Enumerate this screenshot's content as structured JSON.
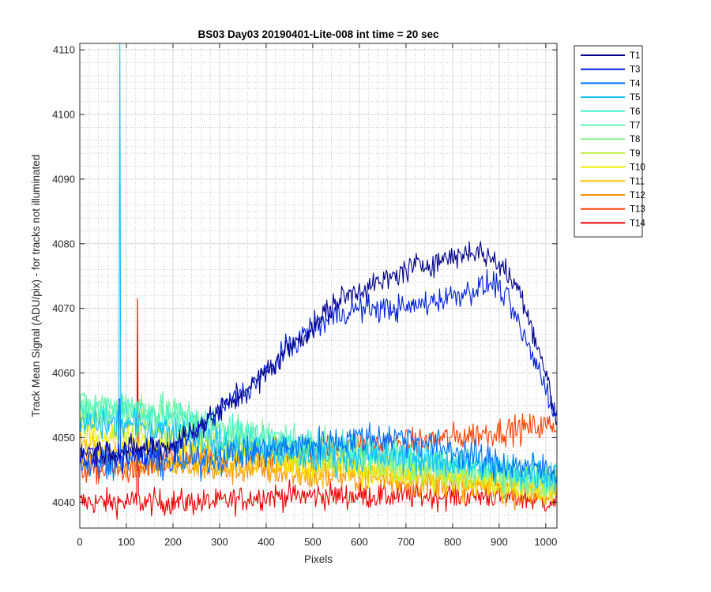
{
  "chart_data": {
    "type": "line",
    "title": "BS03 Day03 20190401-Lite-008 int time = 20 sec",
    "xlabel": "Pixels",
    "ylabel": "Track Mean Signal (ADU/pix) - for tracks not illuminated",
    "xlim": [
      0,
      1024
    ],
    "ylim": [
      4036,
      4111
    ],
    "xticks": [
      0,
      100,
      200,
      300,
      400,
      500,
      600,
      700,
      800,
      900,
      1000
    ],
    "yticks": [
      4040,
      4050,
      4060,
      4070,
      4080,
      4090,
      4100,
      4110
    ],
    "grid": "major and minor (dotted)",
    "legend_position": "outside top-right",
    "series": [
      {
        "name": "T1",
        "color": "#00008f",
        "points": [
          [
            0,
            4048
          ],
          [
            100,
            4048
          ],
          [
            200,
            4049
          ],
          [
            280,
            4053
          ],
          [
            350,
            4057
          ],
          [
            400,
            4060
          ],
          [
            450,
            4064
          ],
          [
            500,
            4067
          ],
          [
            550,
            4071
          ],
          [
            600,
            4073
          ],
          [
            650,
            4074
          ],
          [
            700,
            4076
          ],
          [
            750,
            4077
          ],
          [
            800,
            4078
          ],
          [
            850,
            4079
          ],
          [
            900,
            4077
          ],
          [
            950,
            4072
          ],
          [
            975,
            4066
          ],
          [
            1000,
            4060
          ],
          [
            1024,
            4052
          ]
        ],
        "noise": 1.2
      },
      {
        "name": "T3",
        "color": "#0020df",
        "points": [
          [
            0,
            4047
          ],
          [
            100,
            4047
          ],
          [
            200,
            4048
          ],
          [
            280,
            4053
          ],
          [
            350,
            4057
          ],
          [
            400,
            4060
          ],
          [
            450,
            4064
          ],
          [
            500,
            4067
          ],
          [
            550,
            4069
          ],
          [
            600,
            4070
          ],
          [
            650,
            4070
          ],
          [
            700,
            4070
          ],
          [
            750,
            4071
          ],
          [
            800,
            4072
          ],
          [
            850,
            4073
          ],
          [
            890,
            4074
          ],
          [
            920,
            4071
          ],
          [
            950,
            4066
          ],
          [
            975,
            4062
          ],
          [
            1000,
            4058
          ],
          [
            1024,
            4053
          ]
        ],
        "noise": 1.2
      },
      {
        "name": "T4",
        "color": "#0070ff",
        "points": [
          [
            0,
            4046
          ],
          [
            100,
            4047
          ],
          [
            200,
            4046
          ],
          [
            300,
            4047
          ],
          [
            400,
            4048
          ],
          [
            500,
            4049
          ],
          [
            600,
            4050
          ],
          [
            700,
            4050
          ],
          [
            800,
            4048
          ],
          [
            900,
            4046
          ],
          [
            1024,
            4045
          ]
        ],
        "noise": 1.5,
        "spikes": [
          [
            85,
            4056
          ]
        ]
      },
      {
        "name": "T5",
        "color": "#10c0ff",
        "points": [
          [
            0,
            4052
          ],
          [
            100,
            4052
          ],
          [
            200,
            4051
          ],
          [
            300,
            4049
          ],
          [
            400,
            4048
          ],
          [
            500,
            4047
          ],
          [
            600,
            4047
          ],
          [
            700,
            4047
          ],
          [
            800,
            4046
          ],
          [
            900,
            4045
          ],
          [
            1024,
            4044
          ]
        ],
        "noise": 1.5,
        "spikes": [
          [
            86,
            4111
          ]
        ]
      },
      {
        "name": "T6",
        "color": "#40f0d0",
        "points": [
          [
            0,
            4054
          ],
          [
            100,
            4054
          ],
          [
            200,
            4053
          ],
          [
            300,
            4051
          ],
          [
            400,
            4050
          ],
          [
            500,
            4049
          ],
          [
            600,
            4048
          ],
          [
            700,
            4047
          ],
          [
            800,
            4046
          ],
          [
            900,
            4045
          ],
          [
            1024,
            4044
          ]
        ],
        "noise": 1.5
      },
      {
        "name": "T7",
        "color": "#60f5b0",
        "points": [
          [
            0,
            4055
          ],
          [
            100,
            4055
          ],
          [
            200,
            4054
          ],
          [
            300,
            4052
          ],
          [
            400,
            4050
          ],
          [
            500,
            4049
          ],
          [
            600,
            4048
          ],
          [
            700,
            4047
          ],
          [
            800,
            4046
          ],
          [
            900,
            4045
          ],
          [
            1024,
            4043
          ]
        ],
        "noise": 1.5
      },
      {
        "name": "T8",
        "color": "#90f090",
        "points": [
          [
            0,
            4054
          ],
          [
            100,
            4054
          ],
          [
            200,
            4053
          ],
          [
            300,
            4051
          ],
          [
            400,
            4049
          ],
          [
            500,
            4048
          ],
          [
            600,
            4047
          ],
          [
            700,
            4046
          ],
          [
            800,
            4045
          ],
          [
            900,
            4044
          ],
          [
            1024,
            4043
          ]
        ],
        "noise": 1.5
      },
      {
        "name": "T9",
        "color": "#c0f040",
        "points": [
          [
            0,
            4053
          ],
          [
            100,
            4052
          ],
          [
            200,
            4051
          ],
          [
            300,
            4049
          ],
          [
            400,
            4048
          ],
          [
            500,
            4047
          ],
          [
            600,
            4046
          ],
          [
            700,
            4045
          ],
          [
            800,
            4044
          ],
          [
            900,
            4044
          ],
          [
            1024,
            4043
          ]
        ],
        "noise": 1.5
      },
      {
        "name": "T10",
        "color": "#f0f000",
        "points": [
          [
            0,
            4051
          ],
          [
            100,
            4050
          ],
          [
            200,
            4049
          ],
          [
            300,
            4048
          ],
          [
            400,
            4047
          ],
          [
            500,
            4046
          ],
          [
            600,
            4045
          ],
          [
            700,
            4044
          ],
          [
            800,
            4044
          ],
          [
            900,
            4043
          ],
          [
            1024,
            4042
          ]
        ],
        "noise": 1.5
      },
      {
        "name": "T11",
        "color": "#ffc000",
        "points": [
          [
            0,
            4049
          ],
          [
            100,
            4048
          ],
          [
            200,
            4047
          ],
          [
            300,
            4046
          ],
          [
            400,
            4046
          ],
          [
            500,
            4045
          ],
          [
            600,
            4045
          ],
          [
            700,
            4044
          ],
          [
            800,
            4043
          ],
          [
            900,
            4043
          ],
          [
            1024,
            4042
          ]
        ],
        "noise": 1.4
      },
      {
        "name": "T12",
        "color": "#ff9000",
        "points": [
          [
            0,
            4047
          ],
          [
            100,
            4046
          ],
          [
            200,
            4046
          ],
          [
            300,
            4045
          ],
          [
            400,
            4045
          ],
          [
            500,
            4044
          ],
          [
            600,
            4044
          ],
          [
            700,
            4043
          ],
          [
            800,
            4043
          ],
          [
            900,
            4042
          ],
          [
            1024,
            4041
          ]
        ],
        "noise": 1.4
      },
      {
        "name": "T13",
        "color": "#ff4000",
        "points": [
          [
            0,
            4045
          ],
          [
            100,
            4045
          ],
          [
            200,
            4046
          ],
          [
            300,
            4047
          ],
          [
            400,
            4047
          ],
          [
            500,
            4048
          ],
          [
            600,
            4049
          ],
          [
            700,
            4049
          ],
          [
            800,
            4050
          ],
          [
            900,
            4051
          ],
          [
            1024,
            4052
          ]
        ],
        "noise": 1.3
      },
      {
        "name": "T14",
        "color": "#ee0000",
        "points": [
          [
            0,
            4040
          ],
          [
            100,
            4040
          ],
          [
            200,
            4040
          ],
          [
            300,
            4040
          ],
          [
            400,
            4041
          ],
          [
            500,
            4041
          ],
          [
            600,
            4041
          ],
          [
            700,
            4041
          ],
          [
            800,
            4041
          ],
          [
            900,
            4041
          ],
          [
            1024,
            4040
          ]
        ],
        "noise": 1.2,
        "spikes": [
          [
            124,
            4071.5
          ]
        ]
      }
    ]
  }
}
